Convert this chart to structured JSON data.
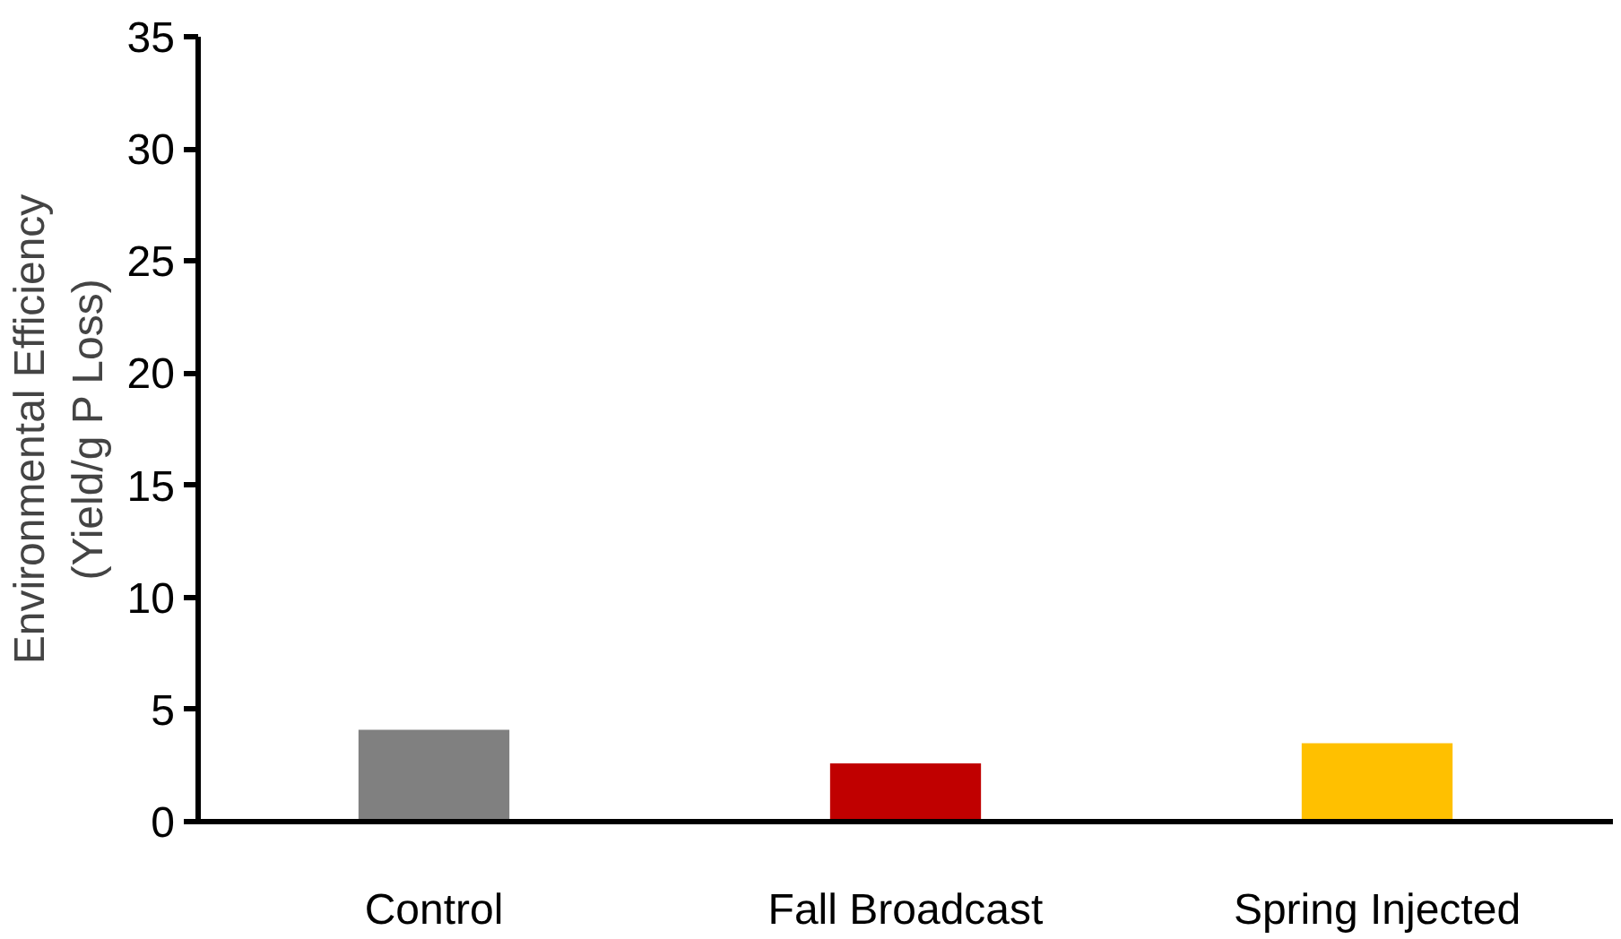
{
  "chart_data": {
    "type": "bar",
    "ylabel": "Environmental Efficiency\n(Yield/g P Loss)",
    "categories": [
      "Control",
      "Fall Broadcast",
      "Spring Injected"
    ],
    "values": [
      4.1,
      2.6,
      3.5
    ],
    "colors": [
      "#808080",
      "#c00000",
      "#ffc000"
    ],
    "ylim": [
      0,
      35
    ],
    "yticks": [
      0,
      5,
      10,
      15,
      20,
      25,
      30,
      35
    ],
    "grid": false
  }
}
